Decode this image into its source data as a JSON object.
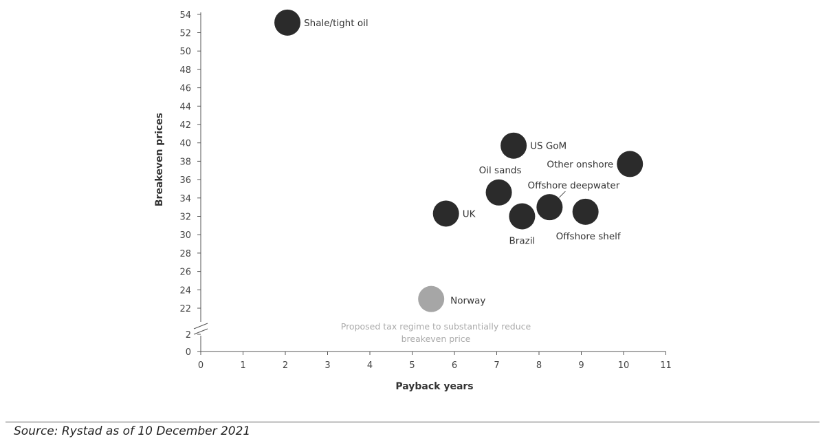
{
  "chart_data": {
    "type": "scatter",
    "xlabel": "Payback years",
    "ylabel": "Breakeven prices",
    "xlim": [
      0,
      11
    ],
    "x_ticks": [
      "0",
      "1",
      "2",
      "3",
      "4",
      "5",
      "6",
      "7",
      "8",
      "9",
      "10",
      "11"
    ],
    "y_ticks_upper": [
      "22",
      "24",
      "26",
      "28",
      "30",
      "32",
      "34",
      "36",
      "38",
      "40",
      "42",
      "44",
      "46",
      "48",
      "50",
      "52",
      "54"
    ],
    "y_ticks_lower": [
      "0",
      "2"
    ],
    "y_axis_break": "between 2 and 22",
    "grid": false,
    "points": [
      {
        "label": "Shale/tight oil",
        "x": 2.05,
        "y": 53.1,
        "color": "#2b2b2b"
      },
      {
        "label": "US GoM",
        "x": 7.4,
        "y": 39.7,
        "color": "#2b2b2b"
      },
      {
        "label": "Other onshore",
        "x": 10.15,
        "y": 37.7,
        "color": "#2b2b2b"
      },
      {
        "label": "Oil sands",
        "x": 7.05,
        "y": 34.6,
        "color": "#2b2b2b"
      },
      {
        "label": "Offshore deepwater",
        "x": 8.25,
        "y": 33.0,
        "color": "#2b2b2b"
      },
      {
        "label": "UK",
        "x": 5.8,
        "y": 32.3,
        "color": "#2b2b2b"
      },
      {
        "label": "Brazil",
        "x": 7.6,
        "y": 32.0,
        "color": "#2b2b2b"
      },
      {
        "label": "Offshore shelf",
        "x": 9.1,
        "y": 32.5,
        "color": "#2b2b2b"
      },
      {
        "label": "Norway",
        "x": 5.45,
        "y": 23.0,
        "color": "#a6a6a6"
      }
    ],
    "annotation": [
      "Proposed tax regime to substantially reduce",
      "breakeven price"
    ]
  },
  "source": "Source: Rystad as of 10 December 2021"
}
